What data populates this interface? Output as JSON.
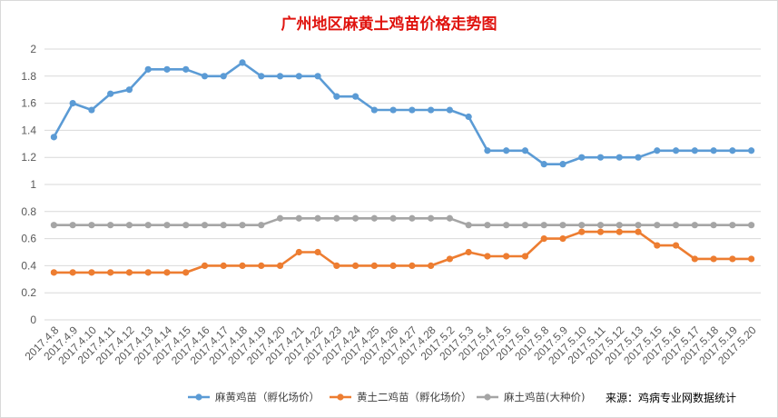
{
  "chart_data": {
    "type": "line",
    "title": "广州地区麻黄土鸡苗价格走势图",
    "ylim": [
      0,
      2
    ],
    "ytick_step": 0.2,
    "yticks": [
      "0",
      "0.2",
      "0.4",
      "0.6",
      "0.8",
      "1",
      "1.2",
      "1.4",
      "1.6",
      "1.8",
      "2"
    ],
    "grid": true,
    "legend_position": "bottom",
    "categories": [
      "2017.4.8",
      "2017.4.9",
      "2017.4.10",
      "2017.4.11",
      "2017.4.12",
      "2017.4.13",
      "2017.4.14",
      "2017.4.15",
      "2017.4.16",
      "2017.4.17",
      "2017.4.18",
      "2017.4.19",
      "2017.4.20",
      "2017.4.21",
      "2017.4.22",
      "2017.4.23",
      "2017.4.24",
      "2017.4.25",
      "2017.4.26",
      "2017.4.27",
      "2017.4.28",
      "2017.5.2",
      "2017.5.3",
      "2017.5.4",
      "2017.5.5",
      "2017.5.6",
      "2017.5.8",
      "2017.5.9",
      "2017.5.10",
      "2017.5.11",
      "2017.5.12",
      "2017.5.13",
      "2017.5.15",
      "2017.5.16",
      "2017.5.17",
      "2017.5.18",
      "2017.5.19",
      "2017.5.20"
    ],
    "series": [
      {
        "name": "麻黄鸡苗（孵化场价）",
        "color": "#5b9bd5",
        "values": [
          1.35,
          1.6,
          1.55,
          1.67,
          1.7,
          1.85,
          1.85,
          1.85,
          1.8,
          1.8,
          1.9,
          1.8,
          1.8,
          1.8,
          1.8,
          1.65,
          1.65,
          1.55,
          1.55,
          1.55,
          1.55,
          1.55,
          1.5,
          1.25,
          1.25,
          1.25,
          1.15,
          1.15,
          1.2,
          1.2,
          1.2,
          1.2,
          1.25,
          1.25,
          1.25,
          1.25,
          1.25,
          1.25
        ]
      },
      {
        "name": "黄土二鸡苗（孵化场价）",
        "color": "#ed7d31",
        "values": [
          0.35,
          0.35,
          0.35,
          0.35,
          0.35,
          0.35,
          0.35,
          0.35,
          0.4,
          0.4,
          0.4,
          0.4,
          0.4,
          0.5,
          0.5,
          0.4,
          0.4,
          0.4,
          0.4,
          0.4,
          0.4,
          0.45,
          0.5,
          0.47,
          0.47,
          0.47,
          0.6,
          0.6,
          0.65,
          0.65,
          0.65,
          0.65,
          0.55,
          0.55,
          0.45,
          0.45,
          0.45,
          0.45
        ]
      },
      {
        "name": "麻土鸡苗(大种价)",
        "color": "#a5a5a5",
        "values": [
          0.7,
          0.7,
          0.7,
          0.7,
          0.7,
          0.7,
          0.7,
          0.7,
          0.7,
          0.7,
          0.7,
          0.7,
          0.75,
          0.75,
          0.75,
          0.75,
          0.75,
          0.75,
          0.75,
          0.75,
          0.75,
          0.75,
          0.7,
          0.7,
          0.7,
          0.7,
          0.7,
          0.7,
          0.7,
          0.7,
          0.7,
          0.7,
          0.7,
          0.7,
          0.7,
          0.7,
          0.7,
          0.7
        ]
      }
    ],
    "annotation": "来源：鸡病专业网数据统计"
  }
}
